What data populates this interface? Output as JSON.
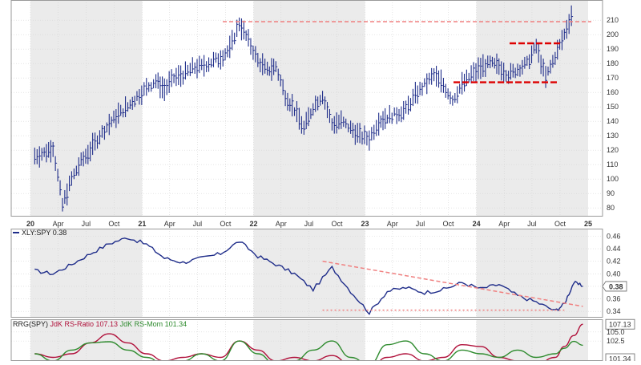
{
  "chart_data": [
    {
      "type": "line",
      "style": "ohlc-bars",
      "title": "",
      "series": [
        {
          "x": [
            "2020-01",
            "2020-02",
            "2020-03",
            "2020-04",
            "2020-05",
            "2020-06",
            "2020-07",
            "2020-08",
            "2020-09",
            "2020-10",
            "2020-11",
            "2020-12",
            "2021-01",
            "2021-02",
            "2021-03",
            "2021-04",
            "2021-05",
            "2021-06",
            "2021-07",
            "2021-08",
            "2021-09",
            "2021-10",
            "2021-11",
            "2021-12",
            "2022-01",
            "2022-02",
            "2022-03",
            "2022-04",
            "2022-05",
            "2022-06",
            "2022-07",
            "2022-08",
            "2022-09",
            "2022-10",
            "2022-11",
            "2022-12",
            "2023-01",
            "2023-02",
            "2023-03",
            "2023-04",
            "2023-05",
            "2023-06",
            "2023-07",
            "2023-08",
            "2023-09",
            "2023-10",
            "2023-11",
            "2023-12",
            "2024-01",
            "2024-02",
            "2024-03",
            "2024-04",
            "2024-05",
            "2024-06",
            "2024-07",
            "2024-08",
            "2024-09",
            "2024-10",
            "2024-11"
          ],
          "values": [
            116,
            118,
            122,
            82,
            100,
            112,
            120,
            130,
            138,
            145,
            150,
            157,
            163,
            168,
            162,
            170,
            172,
            177,
            178,
            181,
            184,
            190,
            208,
            196,
            182,
            175,
            178,
            158,
            148,
            135,
            150,
            158,
            138,
            140,
            135,
            130,
            128,
            140,
            143,
            145,
            148,
            158,
            165,
            172,
            165,
            155,
            165,
            172,
            177,
            180,
            178,
            172,
            176,
            180,
            192,
            170,
            185,
            200,
            218
          ]
        }
      ],
      "yticks": [
        80,
        90,
        100,
        110,
        120,
        130,
        140,
        150,
        160,
        170,
        180,
        190,
        200,
        210
      ],
      "ylim": [
        74,
        224
      ],
      "xtick_labels": [
        "20",
        "Apr",
        "Jul",
        "Oct",
        "21",
        "Apr",
        "Jul",
        "Oct",
        "22",
        "Apr",
        "Jul",
        "Oct",
        "23",
        "Apr",
        "Jul",
        "Oct",
        "24",
        "Apr",
        "Jul",
        "Oct",
        "25"
      ],
      "annotations": [
        {
          "kind": "horizontal-line",
          "style": "dashed",
          "color": "#f08080",
          "y": 209
        },
        {
          "kind": "horizontal-line",
          "style": "dashed",
          "color": "#dd0000",
          "y": 167
        },
        {
          "kind": "horizontal-line",
          "style": "dashed",
          "color": "#dd0000",
          "y": 194
        }
      ]
    },
    {
      "type": "line",
      "legend": [
        "XLY:SPY 0.38"
      ],
      "last_value_label": "0.38",
      "series": [
        {
          "name": "XLY:SPY",
          "x": [
            "2020-01",
            "2020-03",
            "2020-05",
            "2020-07",
            "2020-09",
            "2020-11",
            "2021-01",
            "2021-03",
            "2021-05",
            "2021-07",
            "2021-09",
            "2021-11",
            "2022-01",
            "2022-03",
            "2022-05",
            "2022-07",
            "2022-09",
            "2022-11",
            "2023-01",
            "2023-03",
            "2023-05",
            "2023-07",
            "2023-09",
            "2023-11",
            "2024-01",
            "2024-03",
            "2024-05",
            "2024-07",
            "2024-09",
            "2024-10",
            "2024-11",
            "2024-12"
          ],
          "values": [
            0.405,
            0.4,
            0.415,
            0.432,
            0.448,
            0.458,
            0.447,
            0.425,
            0.418,
            0.425,
            0.432,
            0.452,
            0.428,
            0.415,
            0.4,
            0.375,
            0.41,
            0.372,
            0.338,
            0.372,
            0.378,
            0.37,
            0.375,
            0.386,
            0.376,
            0.383,
            0.365,
            0.355,
            0.341,
            0.352,
            0.386,
            0.38
          ]
        }
      ],
      "yticks": [
        0.34,
        0.36,
        0.38,
        0.4,
        0.42,
        0.44,
        0.46
      ],
      "ylim": [
        0.33,
        0.472
      ],
      "annotations": [
        {
          "kind": "trendline",
          "style": "dashed",
          "color": "#f08080",
          "from": [
            "2022-08",
            0.42
          ],
          "to": [
            "2024-12",
            0.348
          ]
        },
        {
          "kind": "horizontal-line",
          "style": "dotted",
          "color": "#f08080",
          "from": "2022-08",
          "to": "2024-10",
          "y": 0.342
        }
      ]
    },
    {
      "type": "line",
      "legend_prefix": "RRG(SPY)",
      "legend": [
        "JdK RS-Ratio 107.13",
        "JdK RS-Mom 101.34"
      ],
      "last_value_labels": [
        "107.13",
        "101.34"
      ],
      "series": [
        {
          "name": "JdK RS-Ratio",
          "x": [
            "2020-01",
            "2020-03",
            "2020-05",
            "2020-07",
            "2020-09",
            "2020-11",
            "2021-01",
            "2021-03",
            "2021-05",
            "2021-07",
            "2021-09",
            "2021-11",
            "2022-01",
            "2022-03",
            "2022-05",
            "2022-07",
            "2022-09",
            "2022-11",
            "2023-01",
            "2023-03",
            "2023-05",
            "2023-07",
            "2023-09",
            "2023-11",
            "2024-01",
            "2024-03",
            "2024-05",
            "2024-07",
            "2024-09",
            "2024-10",
            "2024-11",
            "2024-12"
          ],
          "values": [
            99,
            98,
            99,
            102,
            104.5,
            102,
            99,
            97,
            98,
            99,
            98,
            102.5,
            100,
            97,
            98,
            97,
            98.5,
            96,
            95,
            98,
            99,
            97,
            98,
            101.5,
            101,
            98,
            97,
            96,
            98,
            101,
            104,
            107.13
          ]
        },
        {
          "name": "JdK RS-Mom",
          "x": [
            "2020-01",
            "2020-03",
            "2020-05",
            "2020-07",
            "2020-09",
            "2020-11",
            "2021-01",
            "2021-03",
            "2021-05",
            "2021-07",
            "2021-09",
            "2021-11",
            "2022-01",
            "2022-03",
            "2022-05",
            "2022-07",
            "2022-09",
            "2022-11",
            "2023-01",
            "2023-03",
            "2023-05",
            "2023-07",
            "2023-09",
            "2023-11",
            "2024-01",
            "2024-03",
            "2024-05",
            "2024-07",
            "2024-09",
            "2024-10",
            "2024-11",
            "2024-12"
          ],
          "values": [
            99,
            97,
            100,
            102,
            102.3,
            100,
            98,
            96,
            97,
            99,
            97,
            102.5,
            99,
            96,
            97,
            100,
            102.5,
            98,
            96,
            101.5,
            102.5,
            99,
            97,
            100,
            99,
            98,
            100,
            98,
            99,
            100.5,
            102.4,
            101.34
          ]
        }
      ],
      "yticks": [
        102.5,
        105.0
      ],
      "ylim": [
        97,
        108.5
      ]
    }
  ],
  "colors": {
    "price": "#1f2d8a",
    "ratio_line": "#1f2d8a",
    "rs_ratio": "#b0103a",
    "rs_mom": "#2e8b2e",
    "alt_band": "#ebebeb",
    "grid": "#d4d4d4"
  }
}
